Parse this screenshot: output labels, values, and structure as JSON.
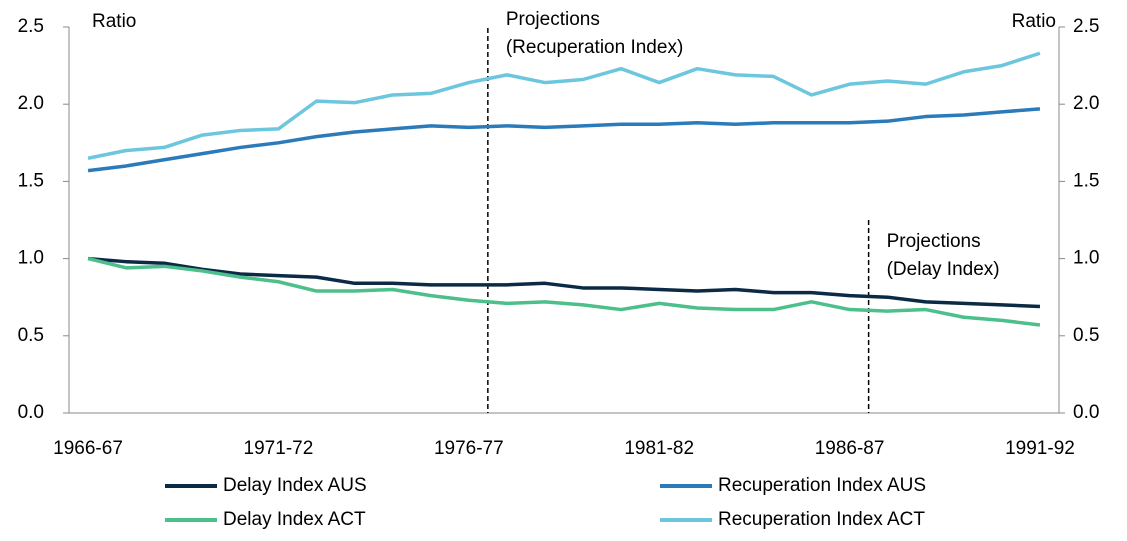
{
  "chart_data": {
    "type": "line",
    "categories": [
      "1966-67",
      null,
      null,
      null,
      null,
      "1971-72",
      null,
      null,
      null,
      null,
      "1976-77",
      null,
      null,
      null,
      null,
      "1981-82",
      null,
      null,
      null,
      null,
      "1986-87",
      null,
      null,
      null,
      null,
      "1991-92"
    ],
    "y_label": "Ratio",
    "y2_label": "Ratio",
    "ylim": [
      0,
      2.5
    ],
    "yticks": [
      {
        "value": 0,
        "label": "0.0"
      },
      0.5,
      {
        "value": 1,
        "label": "1.0"
      },
      1.5,
      {
        "value": 2,
        "label": "2.0"
      },
      2.5
    ],
    "y2lim": [
      0,
      2.5
    ],
    "y2ticks": [
      {
        "value": 0,
        "label": "0.0"
      },
      0.5,
      {
        "value": 1,
        "label": "1.0"
      },
      1.5,
      {
        "value": 2,
        "label": "2.0"
      },
      2.5
    ],
    "grid": false,
    "series": [
      {
        "name": "Delay Index AUS",
        "color": "#0b2a45",
        "values": [
          1.0,
          0.98,
          0.97,
          0.93,
          0.9,
          0.89,
          0.88,
          0.84,
          0.84,
          0.83,
          0.83,
          0.83,
          0.84,
          0.81,
          0.81,
          0.8,
          0.79,
          0.8,
          0.78,
          0.78,
          0.76,
          0.75,
          0.72,
          0.71,
          0.7,
          0.69
        ]
      },
      {
        "name": "Recuperation Index AUS",
        "color": "#2b7bba",
        "values": [
          1.57,
          1.6,
          1.64,
          1.68,
          1.72,
          1.75,
          1.79,
          1.82,
          1.84,
          1.86,
          1.85,
          1.86,
          1.85,
          1.86,
          1.87,
          1.87,
          1.88,
          1.87,
          1.88,
          1.88,
          1.88,
          1.89,
          1.92,
          1.93,
          1.95,
          1.97
        ]
      },
      {
        "name": "Delay Index ACT",
        "color": "#4cbf8b",
        "values": [
          1.0,
          0.94,
          0.95,
          0.92,
          0.88,
          0.85,
          0.79,
          0.79,
          0.8,
          0.76,
          0.73,
          0.71,
          0.72,
          0.7,
          0.67,
          0.71,
          0.68,
          0.67,
          0.67,
          0.72,
          0.67,
          0.66,
          0.67,
          0.62,
          0.6,
          0.57
        ]
      },
      {
        "name": "Recuperation Index ACT",
        "color": "#6cc6de",
        "values": [
          1.65,
          1.7,
          1.72,
          1.8,
          1.83,
          1.84,
          2.02,
          2.01,
          2.06,
          2.07,
          2.14,
          2.19,
          2.14,
          2.16,
          2.23,
          2.14,
          2.23,
          2.19,
          2.18,
          2.06,
          2.13,
          2.15,
          2.13,
          2.21,
          2.25,
          2.33
        ]
      }
    ],
    "annotations": [
      {
        "lines": [
          "Projections",
          "(Recuperation Index)"
        ],
        "x": 10.5
      },
      {
        "lines": [
          "Projections",
          "(Delay Index)"
        ],
        "x": 20.5
      }
    ]
  }
}
